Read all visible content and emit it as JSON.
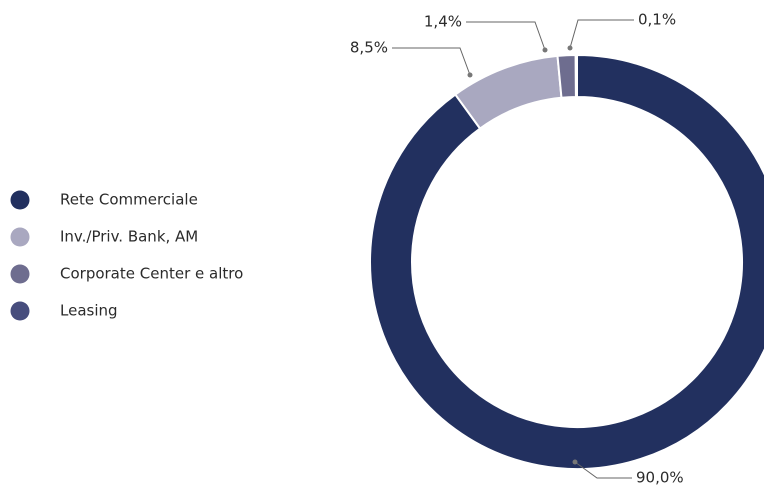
{
  "chart_data": {
    "type": "pie",
    "categories": [
      "Rete Commerciale",
      "Inv./Priv. Bank, AM",
      "Corporate Center e altro",
      "Leasing"
    ],
    "values": [
      90.0,
      8.5,
      1.4,
      0.1
    ],
    "value_labels": [
      "90,0%",
      "8,5%",
      "1,4%",
      "0,1%"
    ],
    "colors": [
      "#22305f",
      "#a9a8c0",
      "#6e6d8f",
      "#474d7d"
    ],
    "legend": "left"
  }
}
